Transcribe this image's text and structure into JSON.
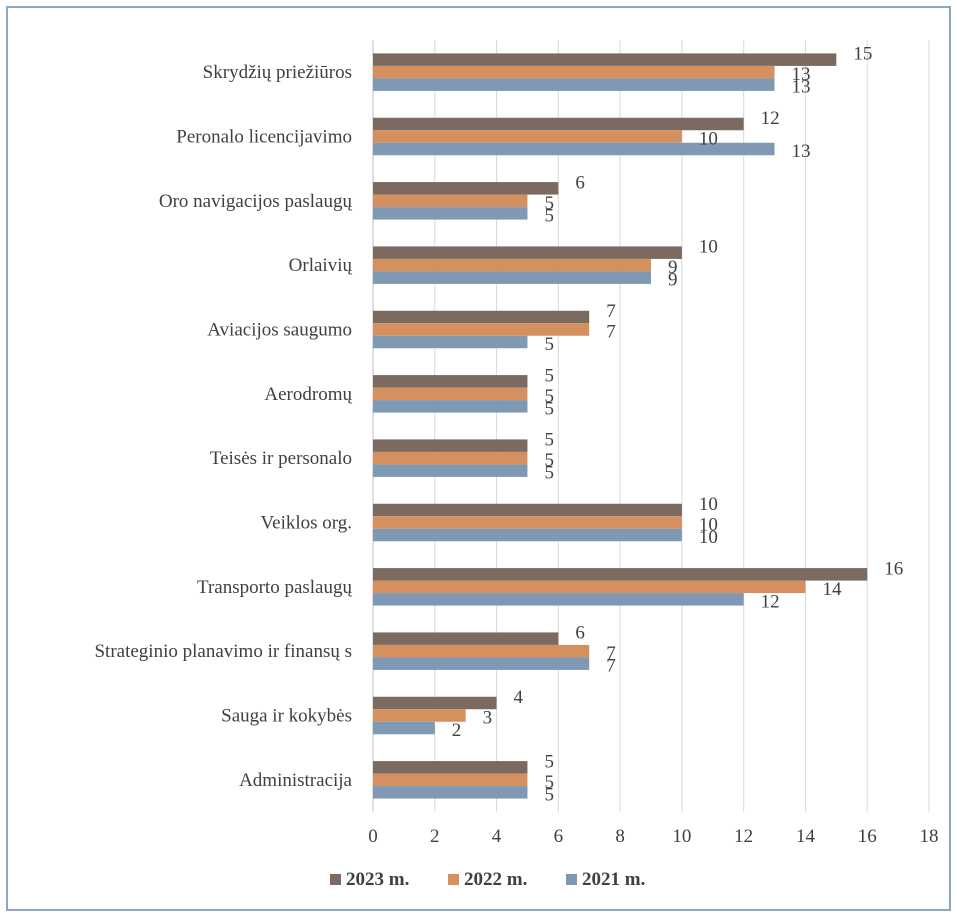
{
  "chart_data": {
    "type": "bar",
    "orientation": "horizontal",
    "categories": [
      "Skrydžių priežiūros",
      "Peronalo licencijavimo",
      "Oro navigacijos paslaugų",
      "Orlaivių",
      "Aviacijos saugumo",
      "Aerodromų",
      "Teisės ir personalo",
      "Veiklos org.",
      "Transporto paslaugų",
      "Strateginio planavimo ir finansų s",
      "Sauga ir kokybės",
      "Administracija"
    ],
    "series": [
      {
        "name": "2023 m.",
        "color": "#7a6a60",
        "values": [
          15,
          12,
          6,
          10,
          7,
          5,
          5,
          10,
          16,
          6,
          4,
          5
        ]
      },
      {
        "name": "2022 m.",
        "color": "#d4915f",
        "values": [
          13,
          10,
          5,
          9,
          7,
          5,
          5,
          10,
          14,
          7,
          3,
          5
        ]
      },
      {
        "name": "2021 m.",
        "color": "#7f99b4",
        "values": [
          13,
          13,
          5,
          9,
          5,
          5,
          5,
          10,
          12,
          7,
          2,
          5
        ]
      }
    ],
    "xlim": [
      0,
      18
    ],
    "xticks": [
      "0",
      "2",
      "4",
      "6",
      "8",
      "10",
      "12",
      "14",
      "16",
      "18"
    ],
    "grid": "vertical",
    "legend_position": "bottom",
    "data_labels": true,
    "gridline_color": "#d9d9d9",
    "frame_color": "#8fa7c6"
  }
}
